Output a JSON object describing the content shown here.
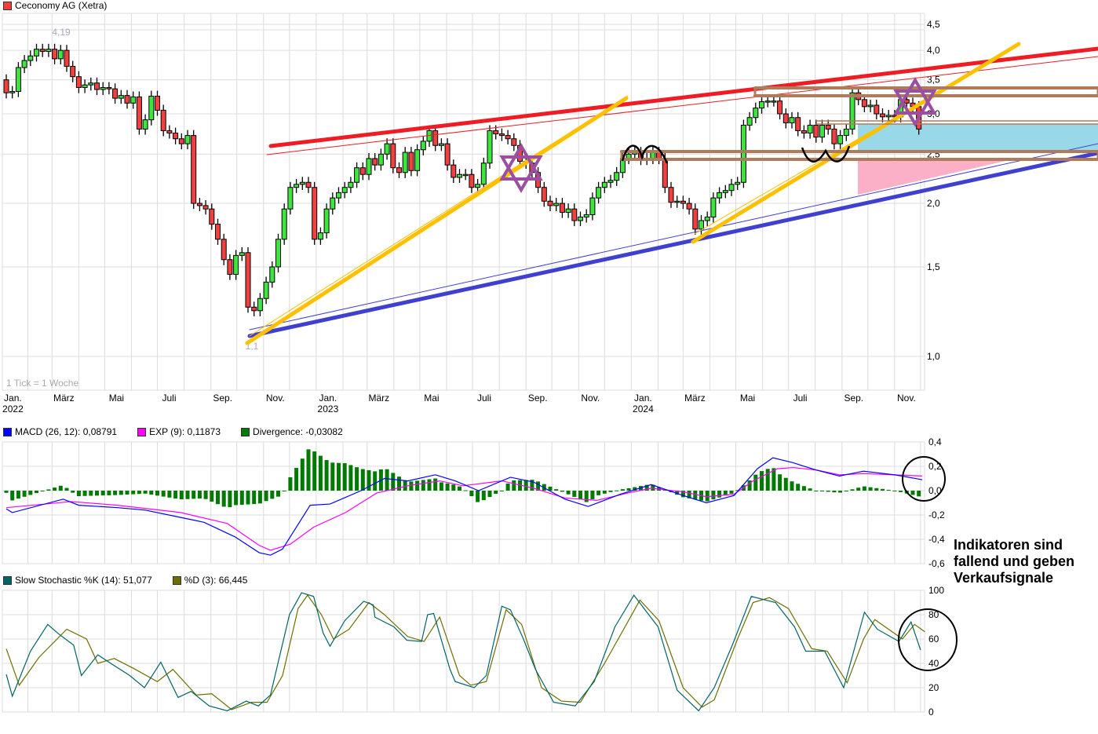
{
  "title": "Ceconomy AG (Xetra)",
  "colors": {
    "up": "#3ce63c",
    "down": "#f04040",
    "macd": "#0000ff",
    "signal": "#ff00ff",
    "divergence": "#007a00",
    "stoch_k": "#006464",
    "stoch_d": "#6e6e00",
    "title_square": "#f04040"
  },
  "chart_data": [
    {
      "type": "candlestick",
      "scale": "log",
      "interval_note": "1 Tick = 1 Woche",
      "y_ticks": [
        "1,0",
        "1,5",
        "2,0",
        "2,5",
        "3,0",
        "3,5",
        "4,0",
        "4,5"
      ],
      "y_tick_values": [
        1.0,
        1.5,
        2.0,
        2.5,
        3.0,
        3.5,
        4.0,
        4.5
      ],
      "ylim": [
        0.95,
        4.75
      ],
      "x_ticks": [
        {
          "label": "Jan.",
          "year": "2022",
          "date": "2022-01"
        },
        {
          "label": "März",
          "date": "2022-03"
        },
        {
          "label": "Mai",
          "date": "2022-05"
        },
        {
          "label": "Juli",
          "date": "2022-07"
        },
        {
          "label": "Sep.",
          "date": "2022-09"
        },
        {
          "label": "Nov.",
          "date": "2022-11"
        },
        {
          "label": "Jan.",
          "year": "2023",
          "date": "2023-01"
        },
        {
          "label": "März",
          "date": "2023-03"
        },
        {
          "label": "Mai",
          "date": "2023-05"
        },
        {
          "label": "Juli",
          "date": "2023-07"
        },
        {
          "label": "Sep.",
          "date": "2023-09"
        },
        {
          "label": "Nov.",
          "date": "2023-11"
        },
        {
          "label": "Jan.",
          "year": "2024",
          "date": "2024-01"
        },
        {
          "label": "März",
          "date": "2024-03"
        },
        {
          "label": "Mai",
          "date": "2024-05"
        },
        {
          "label": "Juli",
          "date": "2024-07"
        },
        {
          "label": "Sep.",
          "date": "2024-09"
        },
        {
          "label": "Nov.",
          "date": "2024-11"
        }
      ],
      "annotations": {
        "high_label": "4,19",
        "low_label": "1,1"
      },
      "first_open": 3.5,
      "weekly_close": [
        3.3,
        3.32,
        3.7,
        3.82,
        3.9,
        4.02,
        3.98,
        4.02,
        3.85,
        4.0,
        3.72,
        3.55,
        3.38,
        3.42,
        3.45,
        3.35,
        3.38,
        3.36,
        3.22,
        3.26,
        3.15,
        3.24,
        2.8,
        2.92,
        3.25,
        3.05,
        2.78,
        2.75,
        2.68,
        2.62,
        2.72,
        2.0,
        1.98,
        1.95,
        1.82,
        1.7,
        1.55,
        1.45,
        1.58,
        1.6,
        1.25,
        1.23,
        1.3,
        1.4,
        1.5,
        1.7,
        1.95,
        2.15,
        2.18,
        2.2,
        2.15,
        1.7,
        1.75,
        1.95,
        2.05,
        2.1,
        2.15,
        2.2,
        2.35,
        2.28,
        2.45,
        2.38,
        2.5,
        2.62,
        2.35,
        2.3,
        2.52,
        2.32,
        2.55,
        2.65,
        2.78,
        2.6,
        2.62,
        2.38,
        2.25,
        2.28,
        2.28,
        2.15,
        2.18,
        2.4,
        2.78,
        2.74,
        2.72,
        2.68,
        2.6,
        2.42,
        2.4,
        2.3,
        2.15,
        2.02,
        1.98,
        2.0,
        1.92,
        1.95,
        1.85,
        1.88,
        1.9,
        2.05,
        2.15,
        2.2,
        2.22,
        2.3,
        2.45,
        2.5,
        2.52,
        2.44,
        2.45,
        2.52,
        2.45,
        2.15,
        2.01,
        2.02,
        2.0,
        1.95,
        1.78,
        1.85,
        1.88,
        2.05,
        2.1,
        2.12,
        2.18,
        2.2,
        2.85,
        2.95,
        3.08,
        3.17,
        3.18,
        3.18,
        3.0,
        2.88,
        2.95,
        2.78,
        2.75,
        2.85,
        2.7,
        2.85,
        2.8,
        2.62,
        2.72,
        2.8,
        3.3,
        3.2,
        3.1,
        3.12,
        3.0,
        2.96,
        2.98,
        2.96,
        3.2,
        3.15,
        3.1,
        2.8
      ]
    },
    {
      "type": "line",
      "legend": [
        {
          "label": "MACD (26, 12): 0,08791",
          "color": "#0000ff"
        },
        {
          "label": "EXP (9): 0,11873",
          "color": "#ff00ff"
        },
        {
          "label": "Divergence: -0,03082",
          "color": "#007a00"
        }
      ],
      "y_ticks": [
        "0,4",
        "0,2",
        "0,0",
        "-0,2",
        "-0,4",
        "-0,6"
      ],
      "y_tick_values": [
        0.4,
        0.2,
        0.0,
        -0.2,
        -0.4,
        -0.6
      ],
      "ylim": [
        -0.6,
        0.4
      ],
      "series": [
        {
          "name": "MACD (26, 12)",
          "points": [
            [
              "2022-01-07",
              -0.15
            ],
            [
              "2022-01-14",
              -0.18
            ],
            [
              "2022-03-14",
              -0.07
            ],
            [
              "2022-04-01",
              -0.12
            ],
            [
              "2022-05-16",
              -0.14
            ],
            [
              "2022-06-17",
              -0.16
            ],
            [
              "2022-07-28",
              -0.22
            ],
            [
              "2022-08-24",
              -0.26
            ],
            [
              "2022-09-29",
              -0.38
            ],
            [
              "2022-10-27",
              -0.51
            ],
            [
              "2022-11-09",
              -0.53
            ],
            [
              "2022-11-23",
              -0.48
            ],
            [
              "2022-12-25",
              -0.12
            ],
            [
              "2023-01-17",
              -0.11
            ],
            [
              "2023-02-22",
              0.0
            ],
            [
              "2023-03-21",
              0.1
            ],
            [
              "2023-04-17",
              0.08
            ],
            [
              "2023-05-19",
              0.13
            ],
            [
              "2023-06-11",
              0.08
            ],
            [
              "2023-07-08",
              0.0
            ],
            [
              "2023-08-14",
              0.11
            ],
            [
              "2023-09-10",
              0.07
            ],
            [
              "2023-10-16",
              -0.07
            ],
            [
              "2023-11-12",
              -0.13
            ],
            [
              "2023-12-19",
              -0.03
            ],
            [
              "2024-01-24",
              0.05
            ],
            [
              "2024-03-01",
              -0.04
            ],
            [
              "2024-03-28",
              -0.1
            ],
            [
              "2024-04-29",
              -0.04
            ],
            [
              "2024-05-26",
              0.18
            ],
            [
              "2024-06-13",
              0.27
            ],
            [
              "2024-07-06",
              0.23
            ],
            [
              "2024-08-02",
              0.17
            ],
            [
              "2024-08-29",
              0.12
            ],
            [
              "2024-09-26",
              0.16
            ],
            [
              "2024-11-01",
              0.13
            ],
            [
              "2024-12-03",
              0.09
            ]
          ]
        },
        {
          "name": "EXP (9)",
          "points": [
            [
              "2022-01-07",
              -0.14
            ],
            [
              "2022-03-23",
              -0.09
            ],
            [
              "2022-05-16",
              -0.12
            ],
            [
              "2022-07-28",
              -0.18
            ],
            [
              "2022-09-20",
              -0.27
            ],
            [
              "2022-10-27",
              -0.45
            ],
            [
              "2022-11-09",
              -0.49
            ],
            [
              "2022-12-02",
              -0.44
            ],
            [
              "2022-12-29",
              -0.3
            ],
            [
              "2023-02-04",
              -0.18
            ],
            [
              "2023-03-12",
              -0.02
            ],
            [
              "2023-04-17",
              0.04
            ],
            [
              "2023-05-24",
              0.08
            ],
            [
              "2023-06-20",
              0.04
            ],
            [
              "2023-08-04",
              0.08
            ],
            [
              "2023-09-10",
              0.02
            ],
            [
              "2023-10-16",
              -0.06
            ],
            [
              "2023-11-22",
              -0.08
            ],
            [
              "2023-12-28",
              -0.02
            ],
            [
              "2024-01-24",
              0.02
            ],
            [
              "2024-03-01",
              -0.01
            ],
            [
              "2024-03-28",
              -0.05
            ],
            [
              "2024-04-29",
              -0.03
            ],
            [
              "2024-05-21",
              0.08
            ],
            [
              "2024-06-18",
              0.18
            ],
            [
              "2024-07-06",
              0.19
            ],
            [
              "2024-08-02",
              0.17
            ],
            [
              "2024-08-29",
              0.13
            ],
            [
              "2024-09-26",
              0.14
            ],
            [
              "2024-11-01",
              0.13
            ],
            [
              "2024-12-03",
              0.12
            ]
          ]
        }
      ]
    },
    {
      "type": "line",
      "legend": [
        {
          "label": "Slow Stochastic %K (14): 51,077",
          "color": "#006464"
        },
        {
          "label": "%D (3): 66,445",
          "color": "#6e6e00"
        }
      ],
      "y_ticks": [
        "100",
        "80",
        "60",
        "40",
        "20",
        "0"
      ],
      "y_tick_values": [
        100,
        80,
        60,
        40,
        20,
        0
      ],
      "ylim": [
        0,
        100
      ],
      "series": [
        {
          "name": "Slow Stochastic %K (14)",
          "points": [
            [
              "2022-01-07",
              31
            ],
            [
              "2022-01-14",
              13
            ],
            [
              "2022-02-04",
              50
            ],
            [
              "2022-02-24",
              72
            ],
            [
              "2022-03-09",
              64
            ],
            [
              "2022-03-26",
              55
            ],
            [
              "2022-04-04",
              30
            ],
            [
              "2022-04-23",
              47
            ],
            [
              "2022-05-08",
              40
            ],
            [
              "2022-05-30",
              30
            ],
            [
              "2022-06-16",
              20
            ],
            [
              "2022-07-05",
              41
            ],
            [
              "2022-07-25",
              12
            ],
            [
              "2022-08-09",
              17
            ],
            [
              "2022-08-30",
              5
            ],
            [
              "2022-09-20",
              1
            ],
            [
              "2022-10-12",
              9
            ],
            [
              "2022-10-26",
              5
            ],
            [
              "2022-11-09",
              14
            ],
            [
              "2022-12-01",
              80
            ],
            [
              "2022-12-15",
              98
            ],
            [
              "2022-12-29",
              95
            ],
            [
              "2023-01-09",
              65
            ],
            [
              "2023-01-17",
              54
            ],
            [
              "2023-02-03",
              75
            ],
            [
              "2023-02-25",
              91
            ],
            [
              "2023-03-08",
              88
            ],
            [
              "2023-03-10",
              78
            ],
            [
              "2023-04-01",
              70
            ],
            [
              "2023-04-16",
              59
            ],
            [
              "2023-05-03",
              58
            ],
            [
              "2023-05-10",
              80
            ],
            [
              "2023-05-17",
              81
            ],
            [
              "2023-06-05",
              35
            ],
            [
              "2023-06-11",
              25
            ],
            [
              "2023-07-03",
              20
            ],
            [
              "2023-07-17",
              30
            ],
            [
              "2023-08-04",
              87
            ],
            [
              "2023-08-14",
              84
            ],
            [
              "2023-08-29",
              60
            ],
            [
              "2023-09-12",
              35
            ],
            [
              "2023-10-03",
              8
            ],
            [
              "2023-10-28",
              5
            ],
            [
              "2023-11-19",
              25
            ],
            [
              "2023-12-13",
              70
            ],
            [
              "2024-01-04",
              96
            ],
            [
              "2024-01-19",
              82
            ],
            [
              "2024-02-01",
              70
            ],
            [
              "2024-02-23",
              18
            ],
            [
              "2024-03-19",
              1
            ],
            [
              "2024-04-06",
              20
            ],
            [
              "2024-04-27",
              55
            ],
            [
              "2024-05-19",
              95
            ],
            [
              "2024-06-16",
              90
            ],
            [
              "2024-07-08",
              70
            ],
            [
              "2024-07-21",
              50
            ],
            [
              "2024-08-12",
              50
            ],
            [
              "2024-09-03",
              20
            ],
            [
              "2024-09-27",
              82
            ],
            [
              "2024-10-12",
              68
            ],
            [
              "2024-11-06",
              58
            ],
            [
              "2024-11-20",
              74
            ],
            [
              "2024-12-01",
              51
            ]
          ]
        },
        {
          "name": "%D (3)",
          "points": [
            [
              "2022-01-07",
              52
            ],
            [
              "2022-01-22",
              22
            ],
            [
              "2022-02-14",
              45
            ],
            [
              "2022-03-18",
              68
            ],
            [
              "2022-04-10",
              60
            ],
            [
              "2022-04-23",
              40
            ],
            [
              "2022-05-12",
              44
            ],
            [
              "2022-06-03",
              36
            ],
            [
              "2022-07-01",
              25
            ],
            [
              "2022-07-19",
              35
            ],
            [
              "2022-08-15",
              14
            ],
            [
              "2022-09-02",
              15
            ],
            [
              "2022-09-25",
              2
            ],
            [
              "2022-10-18",
              8
            ],
            [
              "2022-11-05",
              8
            ],
            [
              "2022-11-23",
              30
            ],
            [
              "2022-12-11",
              85
            ],
            [
              "2022-12-22",
              96
            ],
            [
              "2023-01-07",
              80
            ],
            [
              "2023-01-21",
              60
            ],
            [
              "2023-02-08",
              68
            ],
            [
              "2023-03-03",
              90
            ],
            [
              "2023-03-21",
              80
            ],
            [
              "2023-04-17",
              62
            ],
            [
              "2023-05-06",
              58
            ],
            [
              "2023-05-24",
              78
            ],
            [
              "2023-06-16",
              30
            ],
            [
              "2023-06-29",
              22
            ],
            [
              "2023-07-17",
              25
            ],
            [
              "2023-08-09",
              84
            ],
            [
              "2023-08-27",
              72
            ],
            [
              "2023-09-19",
              20
            ],
            [
              "2023-10-12",
              9
            ],
            [
              "2023-11-03",
              8
            ],
            [
              "2023-12-01",
              40
            ],
            [
              "2024-01-11",
              92
            ],
            [
              "2024-02-02",
              75
            ],
            [
              "2024-03-01",
              20
            ],
            [
              "2024-03-23",
              4
            ],
            [
              "2024-04-06",
              10
            ],
            [
              "2024-05-03",
              60
            ],
            [
              "2024-05-21",
              90
            ],
            [
              "2024-06-09",
              94
            ],
            [
              "2024-07-01",
              85
            ],
            [
              "2024-07-28",
              52
            ],
            [
              "2024-08-15",
              50
            ],
            [
              "2024-09-07",
              24
            ],
            [
              "2024-09-26",
              60
            ],
            [
              "2024-10-09",
              76
            ],
            [
              "2024-11-10",
              60
            ],
            [
              "2024-11-24",
              72
            ],
            [
              "2024-12-06",
              66
            ]
          ]
        }
      ]
    }
  ],
  "note": [
    "Indikatoren sind",
    "fallend und geben",
    "Verkaufsignale"
  ]
}
